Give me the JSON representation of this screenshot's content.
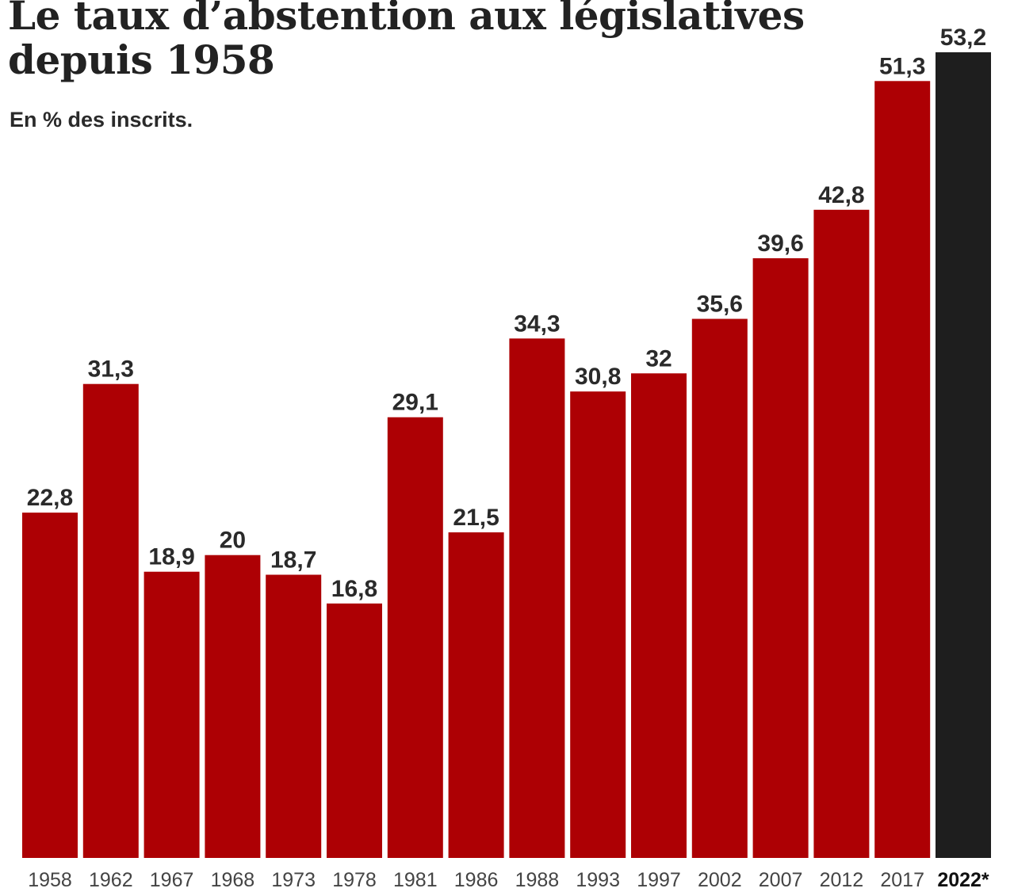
{
  "title": "Le taux d’abstention aux législatives depuis 1958",
  "subtitle": "En % des inscrits.",
  "colors": {
    "bar": "#ad0004",
    "highlight": "#1e1e1e"
  },
  "chart_data": {
    "type": "bar",
    "title": "Le taux d’abstention aux législatives depuis 1958",
    "subtitle": "En % des inscrits.",
    "categories": [
      "1958",
      "1962",
      "1967",
      "1968",
      "1973",
      "1978",
      "1981",
      "1986",
      "1988",
      "1993",
      "1997",
      "2002",
      "2007",
      "2012",
      "2017",
      "2022*"
    ],
    "values": [
      22.8,
      31.3,
      18.9,
      20,
      18.7,
      16.8,
      29.1,
      21.5,
      34.3,
      30.8,
      32,
      35.6,
      39.6,
      42.8,
      51.3,
      53.2
    ],
    "value_labels": [
      "22,8",
      "31,3",
      "18,9",
      "20",
      "18,7",
      "16,8",
      "29,1",
      "21,5",
      "34,3",
      "30,8",
      "32",
      "35,6",
      "39,6",
      "42,8",
      "51,3",
      "53,2"
    ],
    "highlighted_category": "2022*",
    "ylim": [
      0,
      53.2
    ],
    "grid": false,
    "legend": "none"
  }
}
